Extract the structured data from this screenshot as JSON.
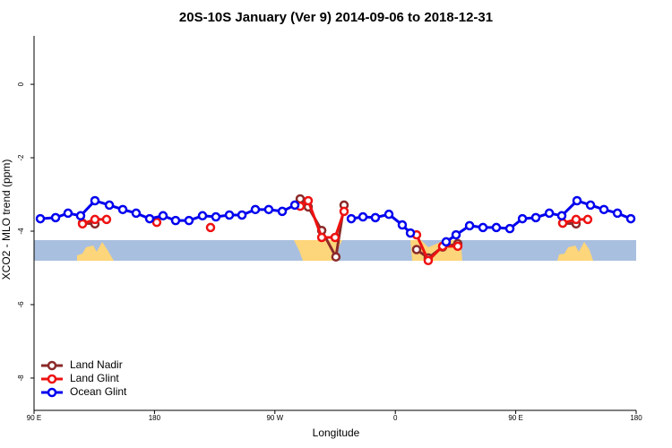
{
  "chart_data": {
    "type": "line",
    "title": "20S-10S January (Ver 9)   2014-09-06 to 2018-12-31",
    "x_label": "Longitude",
    "y_label": "XCO2 - MLO trend (ppm)",
    "xlim": [
      90,
      540
    ],
    "xticks": [
      {
        "value": 90,
        "label": "90 E"
      },
      {
        "value": 180,
        "label": "180"
      },
      {
        "value": 270,
        "label": "90 W"
      },
      {
        "value": 360,
        "label": "0"
      },
      {
        "value": 450,
        "label": "90 E"
      },
      {
        "value": 540,
        "label": "180"
      }
    ],
    "ylim": [
      -8.88,
      1.32
    ],
    "yticks": [
      0,
      -2,
      -4,
      -6,
      -8
    ],
    "legend": "bottom-left",
    "series": [
      {
        "name": "Land Nadir",
        "color": "#8b2a2a",
        "x": [
          126.2,
          135.5,
          null,
          288.9,
          294.9,
          305,
          315.6,
          321.7,
          null,
          375.9,
          384.6,
          395.4,
          406.7,
          null,
          485.1,
          495.1
        ],
        "values": [
          -3.78,
          -3.8,
          null,
          -3.12,
          -3.34,
          -3.98,
          -4.7,
          -3.29,
          null,
          -4.5,
          -4.73,
          -4.43,
          -4.34,
          null,
          -3.78,
          -3.8
        ]
      },
      {
        "name": "Land Glint",
        "color": "#ee1111",
        "x": [
          126.2,
          135.5,
          144.2,
          null,
          181.7,
          null,
          221.9,
          null,
          288.9,
          294.9,
          305,
          315,
          321.7,
          null,
          375.9,
          384.6,
          395.4,
          406.7,
          null,
          485.1,
          495.1,
          503.8
        ],
        "values": [
          -3.8,
          -3.68,
          -3.68,
          null,
          -3.76,
          null,
          -3.9,
          null,
          -3.32,
          -3.17,
          -4.17,
          -4.17,
          -3.46,
          null,
          -4.1,
          -4.8,
          -4.41,
          -4.41,
          null,
          -3.78,
          -3.68,
          -3.68
        ]
      },
      {
        "name": "Ocean Glint",
        "color": "#0000ee",
        "x": [
          94.7,
          106.1,
          115.4,
          124.8,
          135.5,
          146.3,
          156.3,
          166.3,
          176.4,
          186.4,
          195.8,
          205.8,
          215.9,
          225.9,
          236,
          245.4,
          255.4,
          265.4,
          275.5,
          284.9,
          null,
          327.1,
          335.8,
          345.1,
          355.2,
          365.2,
          371.3,
          null,
          398,
          405.4,
          415.5,
          425.5,
          435.5,
          445.6,
          455,
          465,
          475.1,
          484.4,
          495.8,
          505.9,
          515.9,
          526,
          536
        ],
        "values": [
          -3.66,
          -3.63,
          -3.51,
          -3.58,
          -3.17,
          -3.29,
          -3.41,
          -3.51,
          -3.66,
          -3.58,
          -3.71,
          -3.71,
          -3.58,
          -3.61,
          -3.56,
          -3.56,
          -3.41,
          -3.41,
          -3.46,
          -3.29,
          null,
          -3.66,
          -3.61,
          -3.63,
          -3.54,
          -3.83,
          -4.05,
          null,
          -4.29,
          -4.1,
          -3.85,
          -3.9,
          -3.9,
          -3.93,
          -3.66,
          -3.63,
          -3.51,
          -3.58,
          -3.17,
          -3.29,
          -3.41,
          -3.51,
          -3.66
        ]
      }
    ]
  }
}
